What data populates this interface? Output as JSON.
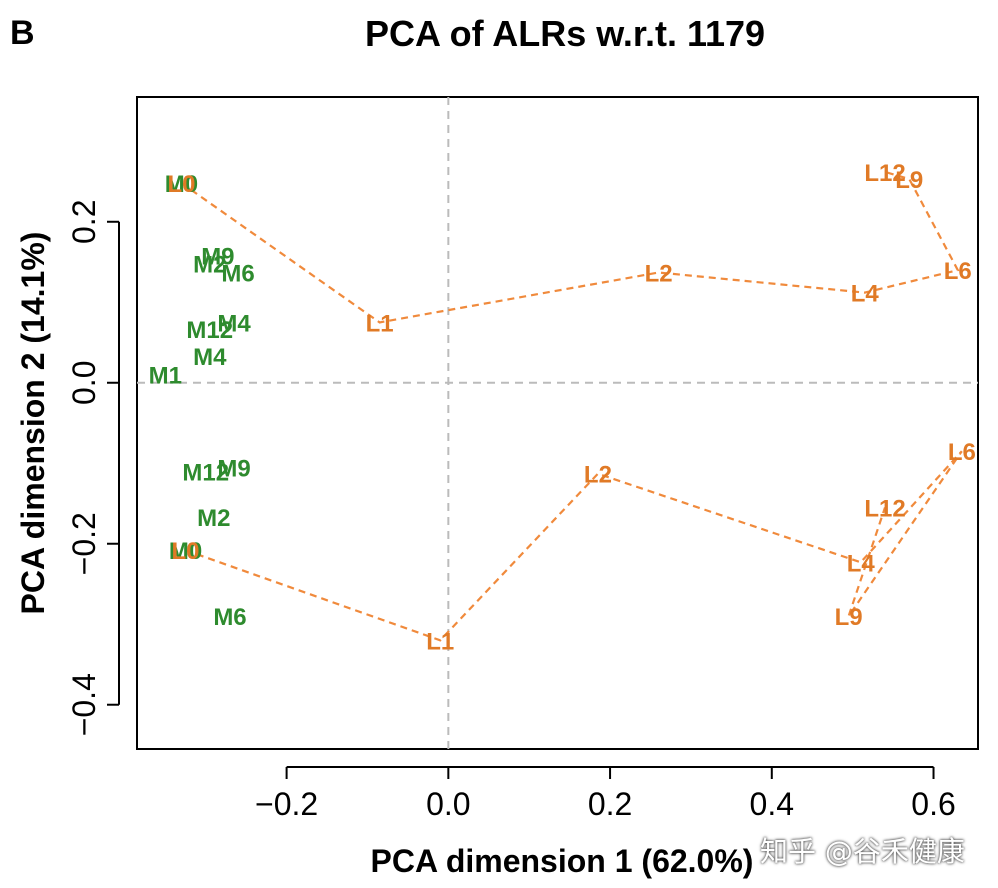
{
  "panel_label": "B",
  "watermark": "知乎 @谷禾健康",
  "chart_data": {
    "type": "scatter",
    "title": "PCA of ALRs w.r.t. 1179",
    "xlabel": "PCA dimension 1 (62.0%)",
    "ylabel": "PCA dimension 2 (14.1%)",
    "xlim": [
      -0.385,
      0.655
    ],
    "ylim": [
      -0.455,
      0.355
    ],
    "xticks": [
      -0.2,
      0.0,
      0.2,
      0.4,
      0.6
    ],
    "xtick_labels": [
      "−0.2",
      "0.0",
      "0.2",
      "0.4",
      "0.6"
    ],
    "yticks": [
      -0.4,
      -0.2,
      0.0,
      0.2
    ],
    "ytick_labels": [
      "−0.4",
      "−0.2",
      "0.0",
      "0.2"
    ],
    "reference_lines": {
      "x": 0,
      "y": 0
    },
    "colors": {
      "M": "#2e8b2e",
      "L": "#e07a26",
      "trajectory": "#f08a3c",
      "ref": "#bbbbbb"
    },
    "groups": [
      {
        "name": "upper",
        "M_points": [
          {
            "label": "M0",
            "x": -0.33,
            "y": 0.248
          },
          {
            "label": "M9",
            "x": -0.285,
            "y": 0.158
          },
          {
            "label": "M2",
            "x": -0.295,
            "y": 0.148
          },
          {
            "label": "M6",
            "x": -0.26,
            "y": 0.137
          },
          {
            "label": "M4",
            "x": -0.265,
            "y": 0.075
          },
          {
            "label": "M12",
            "x": -0.295,
            "y": 0.067
          },
          {
            "label": "M4",
            "x": -0.295,
            "y": 0.033
          },
          {
            "label": "M1",
            "x": -0.35,
            "y": 0.01
          }
        ],
        "L_points": [
          {
            "label": "L0",
            "x": -0.33,
            "y": 0.248
          },
          {
            "label": "L1",
            "x": -0.085,
            "y": 0.075
          },
          {
            "label": "L2",
            "x": 0.26,
            "y": 0.137
          },
          {
            "label": "L4",
            "x": 0.515,
            "y": 0.112
          },
          {
            "label": "L6",
            "x": 0.63,
            "y": 0.14
          },
          {
            "label": "L9",
            "x": 0.57,
            "y": 0.253
          },
          {
            "label": "L12",
            "x": 0.54,
            "y": 0.262
          }
        ],
        "path": [
          "L0",
          "L1",
          "L2",
          "L4",
          "L6",
          "L9",
          "L12"
        ]
      },
      {
        "name": "lower",
        "M_points": [
          {
            "label": "M9",
            "x": -0.265,
            "y": -0.105
          },
          {
            "label": "M12",
            "x": -0.3,
            "y": -0.11
          },
          {
            "label": "M2",
            "x": -0.29,
            "y": -0.167
          },
          {
            "label": "M0",
            "x": -0.325,
            "y": -0.208
          },
          {
            "label": "M6",
            "x": -0.27,
            "y": -0.29
          }
        ],
        "L_points": [
          {
            "label": "L0",
            "x": -0.325,
            "y": -0.208
          },
          {
            "label": "L1",
            "x": -0.01,
            "y": -0.32
          },
          {
            "label": "L2",
            "x": 0.185,
            "y": -0.113
          },
          {
            "label": "L4",
            "x": 0.51,
            "y": -0.223
          },
          {
            "label": "L6",
            "x": 0.635,
            "y": -0.085
          },
          {
            "label": "L9",
            "x": 0.495,
            "y": -0.29
          },
          {
            "label": "L12",
            "x": 0.54,
            "y": -0.155
          }
        ],
        "path": [
          "L0",
          "L1",
          "L2",
          "L4",
          "L6",
          "L9",
          "L12"
        ]
      }
    ]
  }
}
